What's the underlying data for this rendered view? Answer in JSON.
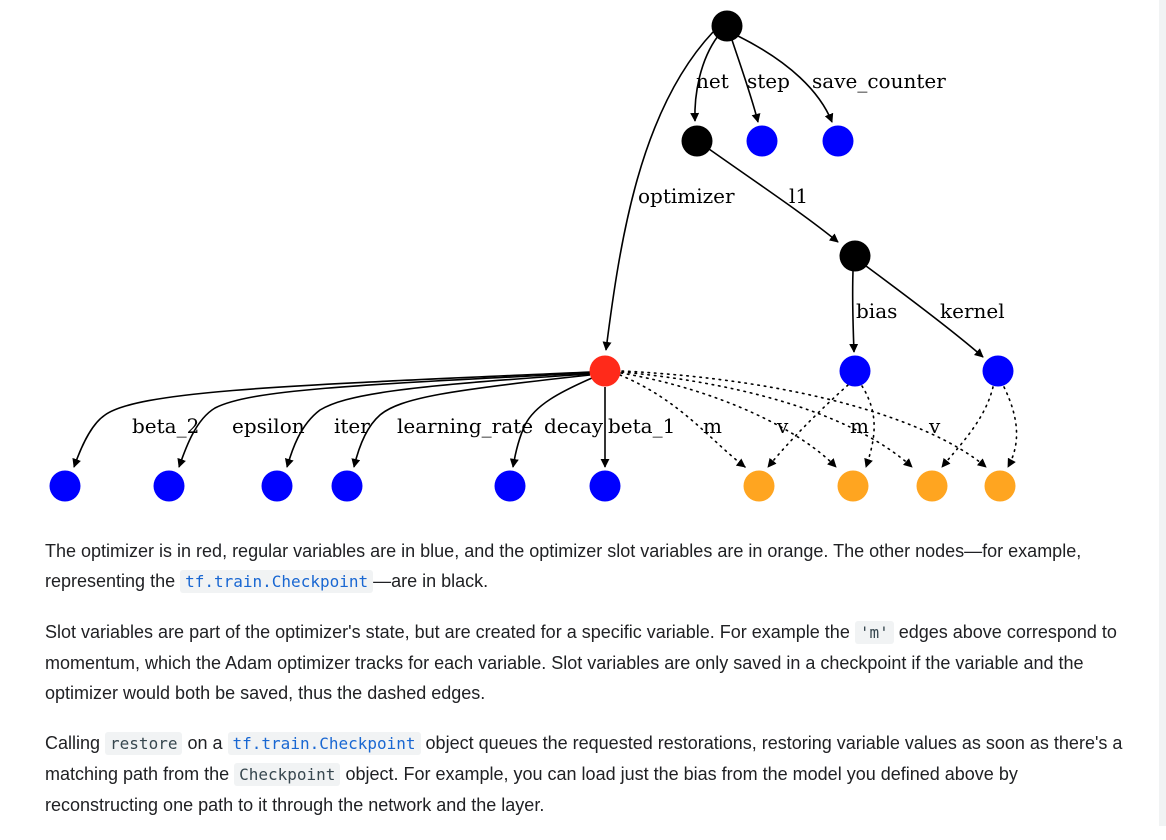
{
  "colors": {
    "optimizer": "#ff2a1a",
    "variable": "#0000ff",
    "slot": "#ffa520",
    "other": "#000000"
  },
  "graph": {
    "nodes": [
      {
        "id": "root",
        "kind": "other"
      },
      {
        "id": "net",
        "kind": "other"
      },
      {
        "id": "step",
        "kind": "variable"
      },
      {
        "id": "save_counter",
        "kind": "variable"
      },
      {
        "id": "l1",
        "kind": "other"
      },
      {
        "id": "bias",
        "kind": "variable"
      },
      {
        "id": "kernel",
        "kind": "variable"
      },
      {
        "id": "optimizer",
        "kind": "optimizer"
      },
      {
        "id": "beta_2",
        "kind": "variable"
      },
      {
        "id": "epsilon",
        "kind": "variable"
      },
      {
        "id": "iter",
        "kind": "variable"
      },
      {
        "id": "learning_rate",
        "kind": "variable"
      },
      {
        "id": "decay",
        "kind": "variable"
      },
      {
        "id": "beta_1",
        "kind": "variable"
      },
      {
        "id": "slot1",
        "kind": "slot"
      },
      {
        "id": "slot2",
        "kind": "slot"
      },
      {
        "id": "slot3",
        "kind": "slot"
      },
      {
        "id": "slot4",
        "kind": "slot"
      }
    ],
    "edges": [
      {
        "from": "root",
        "to": "net",
        "label": "net",
        "style": "solid"
      },
      {
        "from": "root",
        "to": "step",
        "label": "step",
        "style": "solid"
      },
      {
        "from": "root",
        "to": "save_counter",
        "label": "save_counter",
        "style": "solid"
      },
      {
        "from": "root",
        "to": "optimizer",
        "label": "optimizer",
        "style": "solid"
      },
      {
        "from": "net",
        "to": "l1",
        "label": "l1",
        "style": "solid"
      },
      {
        "from": "l1",
        "to": "bias",
        "label": "bias",
        "style": "solid"
      },
      {
        "from": "l1",
        "to": "kernel",
        "label": "kernel",
        "style": "solid"
      },
      {
        "from": "optimizer",
        "to": "beta_2",
        "label": "beta_2",
        "style": "solid"
      },
      {
        "from": "optimizer",
        "to": "epsilon",
        "label": "epsilon",
        "style": "solid"
      },
      {
        "from": "optimizer",
        "to": "iter",
        "label": "iter",
        "style": "solid"
      },
      {
        "from": "optimizer",
        "to": "learning_rate",
        "label": "learning_rate",
        "style": "solid"
      },
      {
        "from": "optimizer",
        "to": "decay",
        "label": "decay",
        "style": "solid"
      },
      {
        "from": "optimizer",
        "to": "beta_1",
        "label": "beta_1",
        "style": "solid"
      },
      {
        "from": "optimizer",
        "to": "slot1",
        "label": "m",
        "style": "dotted"
      },
      {
        "from": "optimizer",
        "to": "slot2",
        "label": "v",
        "style": "dotted"
      },
      {
        "from": "optimizer",
        "to": "slot3",
        "label": "m",
        "style": "dotted"
      },
      {
        "from": "optimizer",
        "to": "slot4",
        "label": "v",
        "style": "dotted"
      },
      {
        "from": "bias",
        "to": "slot1",
        "label": "",
        "style": "dotted"
      },
      {
        "from": "bias",
        "to": "slot2",
        "label": "",
        "style": "dotted"
      },
      {
        "from": "kernel",
        "to": "slot3",
        "label": "",
        "style": "dotted"
      },
      {
        "from": "kernel",
        "to": "slot4",
        "label": "",
        "style": "dotted"
      }
    ]
  },
  "paragraphs": {
    "p1": {
      "t1": "The optimizer is in red, regular variables are in blue, and the optimizer slot variables are in orange. The other nodes—for example, representing the ",
      "code1": "tf.train.Checkpoint",
      "t2": "—are in black."
    },
    "p2": {
      "t1": "Slot variables are part of the optimizer's state, but are created for a specific variable. For example the ",
      "code1": "'m'",
      "t2": " edges above correspond to momentum, which the Adam optimizer tracks for each variable. Slot variables are only saved in a checkpoint if the variable and the optimizer would both be saved, thus the dashed edges."
    },
    "p3": {
      "t1": "Calling ",
      "code1": "restore",
      "t2": " on a ",
      "code2": "tf.train.Checkpoint",
      "t3": " object queues the requested restorations, restoring variable values as soon as there's a matching path from the ",
      "code3": "Checkpoint",
      "t4": " object. For example, you can load just the bias from the model you defined above by reconstructing one path to it through the network and the layer."
    }
  }
}
